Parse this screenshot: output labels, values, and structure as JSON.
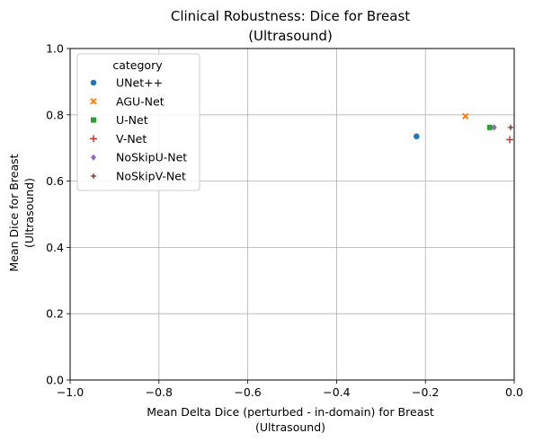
{
  "chart_data": {
    "type": "scatter",
    "title": [
      "Clinical Robustness: Dice for Breast",
      "(Ultrasound)"
    ],
    "xlabel": [
      "Mean Delta Dice (perturbed - in-domain) for Breast",
      "(Ultrasound)"
    ],
    "ylabel": [
      "Mean Dice for Breast",
      "(Ultrasound)"
    ],
    "xlim": [
      -1.0,
      0.0
    ],
    "ylim": [
      0.0,
      1.0
    ],
    "x_ticks": [
      -1.0,
      -0.8,
      -0.6,
      -0.4,
      -0.2,
      0.0
    ],
    "x_tick_labels": [
      "−1.0",
      "−0.8",
      "−0.6",
      "−0.4",
      "−0.2",
      "0.0"
    ],
    "y_ticks": [
      0.0,
      0.2,
      0.4,
      0.6,
      0.8,
      1.0
    ],
    "y_tick_labels": [
      "0.0",
      "0.2",
      "0.4",
      "0.6",
      "0.8",
      "1.0"
    ],
    "grid": true,
    "legend": {
      "title": "category",
      "placement": "upper-left"
    },
    "series": [
      {
        "name": "UNet++",
        "marker": "circle",
        "color": "#1f77b4",
        "points": [
          {
            "x": -0.22,
            "y": 0.735
          }
        ]
      },
      {
        "name": "AGU-Net",
        "marker": "x",
        "color": "#ff7f0e",
        "points": [
          {
            "x": -0.11,
            "y": 0.796
          }
        ]
      },
      {
        "name": "U-Net",
        "marker": "square",
        "color": "#2ca02c",
        "points": [
          {
            "x": -0.055,
            "y": 0.762
          }
        ]
      },
      {
        "name": "V-Net",
        "marker": "plus",
        "color": "#d62728",
        "points": [
          {
            "x": -0.01,
            "y": 0.725
          }
        ]
      },
      {
        "name": "NoSkipU-Net",
        "marker": "diamond",
        "color": "#9467bd",
        "points": [
          {
            "x": -0.045,
            "y": 0.762
          }
        ]
      },
      {
        "name": "NoSkipV-Net",
        "marker": "star",
        "color": "#8c564b",
        "points": [
          {
            "x": -0.008,
            "y": 0.762
          }
        ]
      }
    ]
  }
}
